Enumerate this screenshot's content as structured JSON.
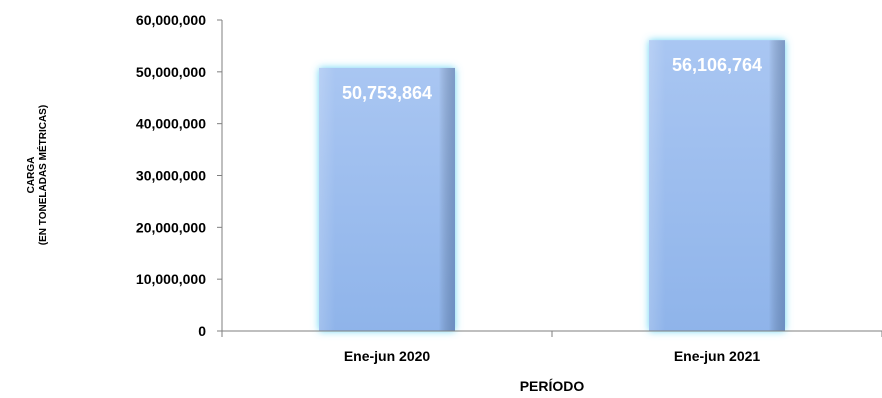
{
  "chart_data": {
    "type": "bar",
    "categories": [
      "Ene-jun 2020",
      "Ene-jun 2021"
    ],
    "values": [
      50753864,
      56106764
    ],
    "data_labels": [
      "50,753,864",
      "56,106,764"
    ],
    "title": "",
    "xlabel": "PERÍODO",
    "ylabel_line1": "CARGA",
    "ylabel_line2": "(EN TONELADAS MÉTRICAS)",
    "ylim": [
      0,
      60000000
    ],
    "yticks": [
      0,
      10000000,
      20000000,
      30000000,
      40000000,
      50000000,
      60000000
    ],
    "ytick_labels": [
      "0",
      "10,000,000",
      "20,000,000",
      "30,000,000",
      "40,000,000",
      "50,000,000",
      "60,000,000"
    ],
    "grid": false,
    "legend": "none",
    "colors": {
      "bar_fill_top": "#a9c6f2",
      "bar_fill_bottom": "#8fb4ea",
      "bar_glow": "#5fd3f5",
      "axis": "#7f7f7f",
      "data_label": "#ffffff"
    }
  }
}
